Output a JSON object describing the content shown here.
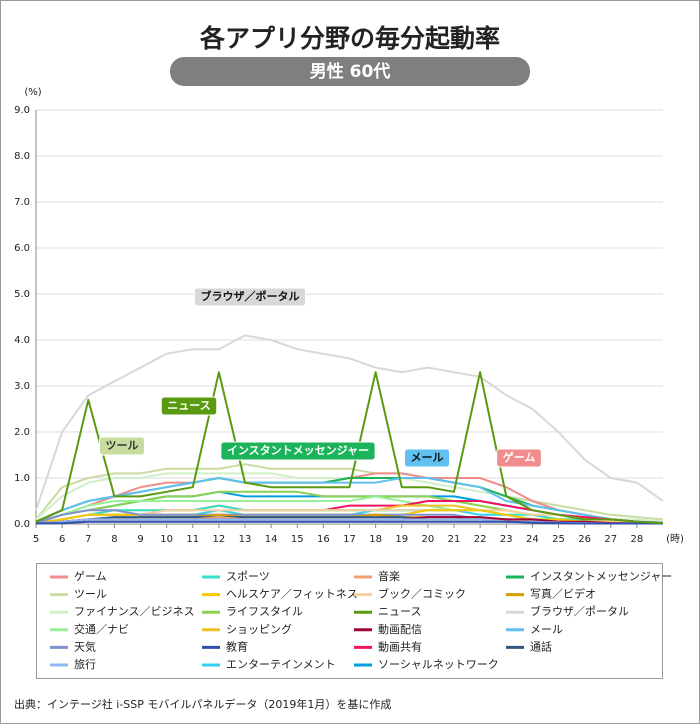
{
  "chart_data": {
    "type": "line",
    "title": "各アプリ分野の毎分起動率",
    "subtitle": "男性 60代",
    "y_label": "(%)",
    "x_label": "(時)",
    "x": [
      5,
      6,
      7,
      8,
      9,
      10,
      11,
      12,
      13,
      14,
      15,
      16,
      17,
      18,
      19,
      20,
      21,
      22,
      23,
      24,
      25,
      26,
      27,
      28,
      29
    ],
    "xlim": [
      5,
      29
    ],
    "xticks": [
      5,
      6,
      7,
      8,
      9,
      10,
      11,
      12,
      13,
      14,
      15,
      16,
      17,
      18,
      19,
      20,
      21,
      22,
      23,
      24,
      25,
      26,
      27,
      28
    ],
    "ylim": [
      0,
      9
    ],
    "yticks": [
      {
        "value": 0,
        "label": "0.0"
      },
      {
        "value": 1,
        "label": "1.0"
      },
      {
        "value": 2,
        "label": "2.0"
      },
      {
        "value": 3,
        "label": "3.0"
      },
      {
        "value": 4,
        "label": "4.0"
      },
      {
        "value": 5,
        "label": "5.0"
      },
      {
        "value": 6,
        "label": "6.0"
      },
      {
        "value": 7,
        "label": "7.0"
      },
      {
        "value": 8,
        "label": "8.0"
      },
      {
        "value": 9,
        "label": "9.0"
      }
    ],
    "grid": true,
    "series": [
      {
        "name": "ゲーム",
        "color": "#f08c8c",
        "values": [
          0.05,
          0.2,
          0.4,
          0.6,
          0.8,
          0.9,
          0.9,
          1.0,
          0.9,
          0.9,
          0.9,
          0.9,
          1.0,
          1.1,
          1.1,
          1.0,
          1.0,
          1.0,
          0.8,
          0.5,
          0.3,
          0.2,
          0.1,
          0.05,
          0.03
        ]
      },
      {
        "name": "スポーツ",
        "color": "#33e0c8",
        "values": [
          0.01,
          0.1,
          0.2,
          0.3,
          0.3,
          0.3,
          0.3,
          0.4,
          0.3,
          0.3,
          0.3,
          0.3,
          0.3,
          0.3,
          0.3,
          0.3,
          0.3,
          0.3,
          0.2,
          0.2,
          0.1,
          0.1,
          0.05,
          0.02,
          0.01
        ]
      },
      {
        "name": "音楽",
        "color": "#f0a070",
        "values": [
          0.01,
          0.05,
          0.1,
          0.1,
          0.1,
          0.1,
          0.1,
          0.15,
          0.1,
          0.1,
          0.1,
          0.1,
          0.1,
          0.1,
          0.1,
          0.1,
          0.1,
          0.1,
          0.1,
          0.05,
          0.05,
          0.03,
          0.02,
          0.01,
          0.01
        ]
      },
      {
        "name": "インスタントメッセンジャー",
        "color": "#1db35a",
        "values": [
          0.05,
          0.3,
          0.5,
          0.6,
          0.7,
          0.8,
          0.9,
          1.0,
          0.9,
          0.9,
          0.9,
          0.9,
          1.0,
          1.0,
          1.0,
          1.0,
          0.9,
          0.8,
          0.6,
          0.4,
          0.3,
          0.2,
          0.1,
          0.05,
          0.03
        ]
      },
      {
        "name": "ツール",
        "color": "#c8dca0",
        "values": [
          0.1,
          0.8,
          1.0,
          1.1,
          1.1,
          1.2,
          1.2,
          1.2,
          1.3,
          1.2,
          1.2,
          1.2,
          1.2,
          1.1,
          1.1,
          1.0,
          0.9,
          0.8,
          0.6,
          0.5,
          0.4,
          0.3,
          0.2,
          0.15,
          0.1
        ]
      },
      {
        "name": "ヘルスケア／フィットネス",
        "color": "#f5c800",
        "values": [
          0.01,
          0.1,
          0.2,
          0.2,
          0.2,
          0.2,
          0.2,
          0.2,
          0.2,
          0.2,
          0.2,
          0.2,
          0.2,
          0.2,
          0.2,
          0.3,
          0.3,
          0.3,
          0.2,
          0.1,
          0.1,
          0.05,
          0.03,
          0.02,
          0.01
        ]
      },
      {
        "name": "ブック／コミック",
        "color": "#f5d0a0",
        "values": [
          0.02,
          0.1,
          0.2,
          0.2,
          0.2,
          0.3,
          0.3,
          0.3,
          0.3,
          0.3,
          0.3,
          0.3,
          0.3,
          0.3,
          0.3,
          0.3,
          0.3,
          0.3,
          0.3,
          0.2,
          0.2,
          0.1,
          0.05,
          0.03,
          0.02
        ]
      },
      {
        "name": "写真／ビデオ",
        "color": "#d4a000",
        "values": [
          0.01,
          0.05,
          0.1,
          0.1,
          0.15,
          0.15,
          0.15,
          0.2,
          0.15,
          0.15,
          0.15,
          0.15,
          0.15,
          0.2,
          0.15,
          0.15,
          0.15,
          0.1,
          0.1,
          0.05,
          0.05,
          0.03,
          0.02,
          0.01,
          0.01
        ]
      },
      {
        "name": "ファイナンス／ビジネス",
        "color": "#d0f0c8",
        "values": [
          0.1,
          0.6,
          0.9,
          1.0,
          1.0,
          1.1,
          1.1,
          1.1,
          1.1,
          1.1,
          1.0,
          1.0,
          1.0,
          1.0,
          1.0,
          0.9,
          0.8,
          0.7,
          0.6,
          0.4,
          0.3,
          0.2,
          0.1,
          0.1,
          0.05
        ]
      },
      {
        "name": "ライフスタイル",
        "color": "#8cd050",
        "values": [
          0.02,
          0.2,
          0.3,
          0.4,
          0.5,
          0.6,
          0.6,
          0.7,
          0.7,
          0.7,
          0.7,
          0.6,
          0.6,
          0.6,
          0.6,
          0.6,
          0.5,
          0.4,
          0.3,
          0.2,
          0.1,
          0.1,
          0.05,
          0.03,
          0.02
        ]
      },
      {
        "name": "ニュース",
        "color": "#5a9a10",
        "values": [
          0.05,
          0.3,
          2.7,
          0.6,
          0.6,
          0.7,
          0.8,
          3.3,
          0.9,
          0.8,
          0.8,
          0.8,
          0.8,
          3.3,
          0.8,
          0.8,
          0.7,
          3.3,
          0.6,
          0.3,
          0.2,
          0.1,
          0.1,
          0.05,
          0.02
        ]
      },
      {
        "name": "ブラウザ／ポータル",
        "color": "#d8d8d8",
        "values": [
          0.3,
          2.0,
          2.8,
          3.1,
          3.4,
          3.7,
          3.8,
          3.8,
          4.1,
          4.0,
          3.8,
          3.7,
          3.6,
          3.4,
          3.3,
          3.4,
          3.3,
          3.2,
          2.8,
          2.5,
          2.0,
          1.4,
          1.0,
          0.9,
          0.5
        ]
      },
      {
        "name": "交通／ナビ",
        "color": "#98f098",
        "values": [
          0.02,
          0.2,
          0.4,
          0.5,
          0.5,
          0.5,
          0.5,
          0.5,
          0.5,
          0.5,
          0.5,
          0.5,
          0.5,
          0.6,
          0.5,
          0.4,
          0.3,
          0.3,
          0.2,
          0.1,
          0.1,
          0.05,
          0.03,
          0.02,
          0.01
        ]
      },
      {
        "name": "ショッピング",
        "color": "#f0c020",
        "values": [
          0.01,
          0.1,
          0.2,
          0.3,
          0.3,
          0.3,
          0.3,
          0.4,
          0.3,
          0.3,
          0.3,
          0.3,
          0.3,
          0.3,
          0.4,
          0.4,
          0.4,
          0.3,
          0.3,
          0.2,
          0.1,
          0.1,
          0.05,
          0.02,
          0.01
        ]
      },
      {
        "name": "動画配信",
        "color": "#a0003c",
        "values": [
          0.01,
          0.05,
          0.1,
          0.1,
          0.1,
          0.1,
          0.1,
          0.1,
          0.1,
          0.1,
          0.1,
          0.1,
          0.1,
          0.1,
          0.1,
          0.15,
          0.15,
          0.15,
          0.1,
          0.1,
          0.05,
          0.05,
          0.02,
          0.01,
          0.01
        ]
      },
      {
        "name": "メール",
        "color": "#60c0f0",
        "values": [
          0.05,
          0.3,
          0.5,
          0.6,
          0.7,
          0.8,
          0.9,
          1.0,
          0.9,
          0.9,
          0.9,
          0.9,
          0.9,
          0.9,
          1.0,
          1.0,
          0.9,
          0.8,
          0.5,
          0.4,
          0.3,
          0.2,
          0.1,
          0.05,
          0.03
        ]
      },
      {
        "name": "天気",
        "color": "#8090d0",
        "values": [
          0.02,
          0.2,
          0.3,
          0.3,
          0.2,
          0.2,
          0.2,
          0.2,
          0.2,
          0.2,
          0.2,
          0.2,
          0.2,
          0.2,
          0.2,
          0.2,
          0.2,
          0.1,
          0.1,
          0.1,
          0.05,
          0.03,
          0.02,
          0.01,
          0.01
        ]
      },
      {
        "name": "教育",
        "color": "#3050b0",
        "values": [
          0.01,
          0.02,
          0.05,
          0.05,
          0.05,
          0.05,
          0.05,
          0.05,
          0.05,
          0.05,
          0.05,
          0.05,
          0.05,
          0.05,
          0.05,
          0.05,
          0.05,
          0.05,
          0.05,
          0.03,
          0.02,
          0.01,
          0.01,
          0.01,
          0.01
        ]
      },
      {
        "name": "動画共有",
        "color": "#f01460",
        "values": [
          0.02,
          0.1,
          0.2,
          0.2,
          0.2,
          0.3,
          0.3,
          0.4,
          0.3,
          0.3,
          0.3,
          0.3,
          0.4,
          0.4,
          0.4,
          0.5,
          0.5,
          0.5,
          0.4,
          0.3,
          0.2,
          0.15,
          0.1,
          0.05,
          0.02
        ]
      },
      {
        "name": "通話",
        "color": "#305880",
        "values": [
          0.01,
          0.05,
          0.1,
          0.15,
          0.15,
          0.15,
          0.15,
          0.15,
          0.15,
          0.15,
          0.15,
          0.15,
          0.15,
          0.15,
          0.15,
          0.1,
          0.1,
          0.1,
          0.05,
          0.05,
          0.03,
          0.02,
          0.01,
          0.01,
          0.01
        ]
      },
      {
        "name": "旅行",
        "color": "#90b8f0",
        "values": [
          0.01,
          0.05,
          0.1,
          0.1,
          0.1,
          0.1,
          0.1,
          0.1,
          0.1,
          0.1,
          0.1,
          0.1,
          0.1,
          0.1,
          0.1,
          0.1,
          0.1,
          0.1,
          0.05,
          0.05,
          0.03,
          0.02,
          0.01,
          0.01,
          0.01
        ]
      },
      {
        "name": "エンターテインメント",
        "color": "#30d0f0",
        "values": [
          0.01,
          0.1,
          0.2,
          0.2,
          0.2,
          0.2,
          0.2,
          0.3,
          0.2,
          0.2,
          0.2,
          0.2,
          0.2,
          0.3,
          0.3,
          0.3,
          0.3,
          0.2,
          0.2,
          0.1,
          0.1,
          0.05,
          0.03,
          0.02,
          0.01
        ]
      },
      {
        "name": "ソーシャルネットワーク",
        "color": "#00a0e0",
        "values": [
          0.02,
          0.2,
          0.3,
          0.4,
          0.5,
          0.6,
          0.6,
          0.7,
          0.6,
          0.6,
          0.6,
          0.6,
          0.6,
          0.6,
          0.6,
          0.6,
          0.6,
          0.5,
          0.4,
          0.3,
          0.2,
          0.1,
          0.05,
          0.03,
          0.02
        ]
      }
    ],
    "annotations": [
      "ブラウザ／ポータル",
      "ニュース",
      "ツール",
      "インスタントメッセンジャー",
      "メール",
      "ゲーム"
    ],
    "source": "出典：インテージ社 i-SSP モバイルパネルデータ（2019年1月）を基に作成"
  }
}
